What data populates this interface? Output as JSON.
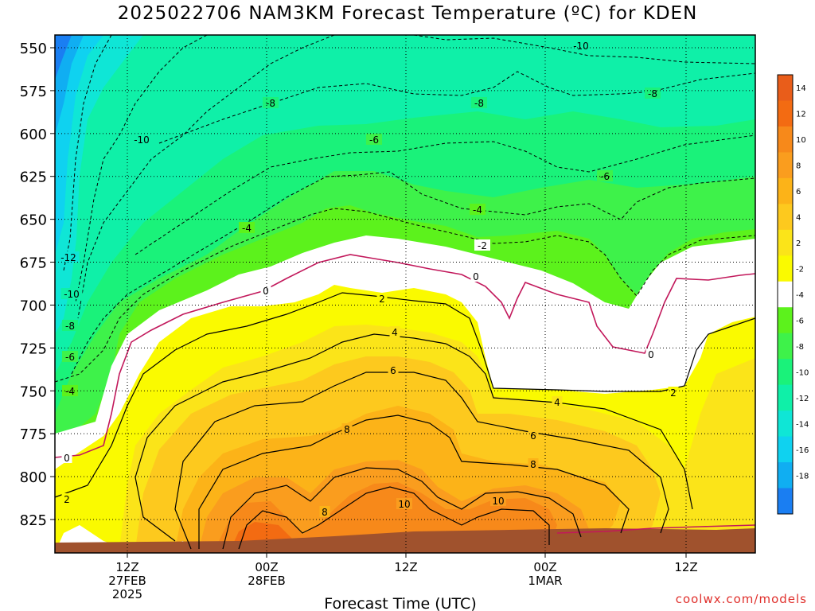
{
  "title": "2025022706 NAM3KM Forecast Temperature (ºC) for KDEN",
  "credit": "coolwx.com/models",
  "chart_data": {
    "type": "heatmap",
    "title": "2025022706 NAM3KM Forecast Temperature (ºC) for KDEN",
    "xlabel": "Forecast Time (UTC)",
    "ylabel": "",
    "ylim": [
      842,
      545
    ],
    "y_ticks": [
      "550",
      "575",
      "600",
      "625",
      "650",
      "675",
      "700",
      "725",
      "750",
      "775",
      "800",
      "825"
    ],
    "x_ticks": [
      {
        "label": "12Z",
        "sub": "27FEB",
        "sub2": "2025"
      },
      {
        "label": "00Z",
        "sub": "28FEB",
        "sub2": ""
      },
      {
        "label": "12Z",
        "sub": "",
        "sub2": ""
      },
      {
        "label": "00Z",
        "sub": "1MAR",
        "sub2": ""
      },
      {
        "label": "12Z",
        "sub": "",
        "sub2": ""
      }
    ],
    "colorbar": {
      "levels": [
        14,
        12,
        10,
        8,
        6,
        4,
        2,
        -2,
        -4,
        -6,
        -8,
        -10,
        -12,
        -14,
        -16,
        -18
      ],
      "colors": {
        "16": "#e95d1a",
        "14": "#f36b12",
        "12": "#f7891a",
        "10": "#fa9d1e",
        "8": "#fcb318",
        "6": "#fdc91e",
        "4": "#fbe419",
        "2": "#fafa00",
        "0": "#ffffff",
        "-2": "#ffffff",
        "-4": "#5cf21c",
        "-6": "#3ef24a",
        "-8": "#1af27a",
        "-10": "#0ff0a8",
        "-12": "#0fe6d6",
        "-14": "#0fd2f0",
        "-16": "#10aef2",
        "-18": "#1a7ef2",
        "-20": "#1f6cf0"
      }
    },
    "contour_labels": [
      {
        "text": "-10",
        "lev": -10
      },
      {
        "text": "-8",
        "lev": -8
      },
      {
        "text": "-10",
        "lev": -10
      },
      {
        "text": "-8",
        "lev": -8
      },
      {
        "text": "-6",
        "lev": -6
      },
      {
        "text": "-8",
        "lev": -8
      },
      {
        "text": "-6",
        "lev": -6
      },
      {
        "text": "-4",
        "lev": -4
      },
      {
        "text": "-4",
        "lev": -4
      },
      {
        "text": "-2",
        "lev": -2
      },
      {
        "text": "-12",
        "lev": -12
      },
      {
        "text": "-10",
        "lev": -10
      },
      {
        "text": "-8",
        "lev": -8
      },
      {
        "text": "-6",
        "lev": -6
      },
      {
        "text": "-4",
        "lev": -4
      },
      {
        "text": "0",
        "lev": 0
      },
      {
        "text": "0",
        "lev": 0
      },
      {
        "text": "0",
        "lev": 0
      },
      {
        "text": "0",
        "lev": 0
      },
      {
        "text": "2",
        "lev": 2
      },
      {
        "text": "2",
        "lev": 2
      },
      {
        "text": "2",
        "lev": 2
      },
      {
        "text": "4",
        "lev": 4
      },
      {
        "text": "4",
        "lev": 4
      },
      {
        "text": "6",
        "lev": 6
      },
      {
        "text": "6",
        "lev": 6
      },
      {
        "text": "8",
        "lev": 8
      },
      {
        "text": "8",
        "lev": 8
      },
      {
        "text": "8",
        "lev": 8
      },
      {
        "text": "10",
        "lev": 10
      },
      {
        "text": "10",
        "lev": 10
      }
    ]
  }
}
